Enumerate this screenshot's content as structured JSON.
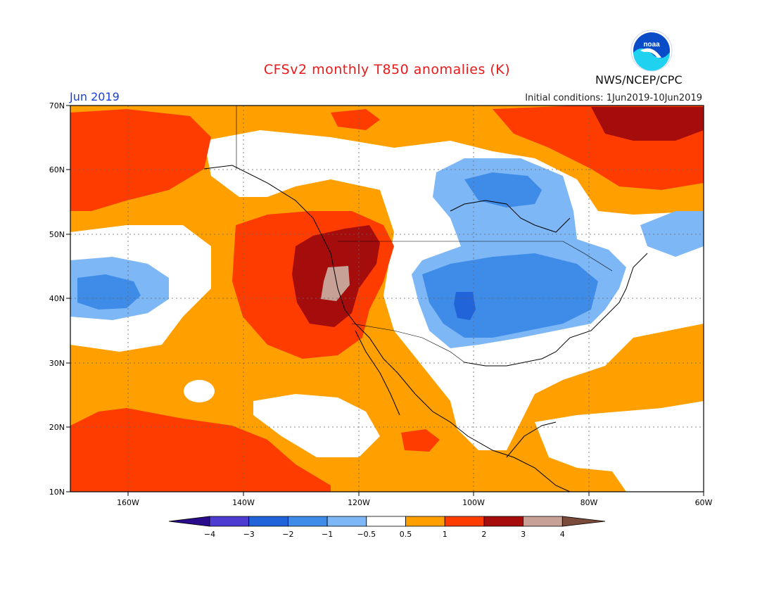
{
  "title": "CFSv2 monthly T850 anomalies (K)",
  "month_label": "Jun 2019",
  "initial_conditions": "Initial conditions: 1Jun2019-10Jun2019",
  "agency": "NWS/NCEP/CPC",
  "logo_text": "noaa",
  "map": {
    "lon_range": [
      -172,
      -60
    ],
    "lat_range": [
      10,
      70
    ],
    "lon_ticks": [
      "160W",
      "140W",
      "120W",
      "100W",
      "80W",
      "60W"
    ],
    "lat_ticks": [
      "70N",
      "60N",
      "50N",
      "40N",
      "30N",
      "20N",
      "10N"
    ],
    "grid": "dotted"
  },
  "colorbar": {
    "labels": [
      "-4",
      "-3",
      "-2",
      "-1",
      "-0.5",
      "0.5",
      "1",
      "2",
      "3",
      "4"
    ],
    "colors": [
      "#2a0b8c",
      "#4e3cd0",
      "#2163d8",
      "#3f8ce8",
      "#7db7f5",
      "#ffffff",
      "#ffa000",
      "#ff3c00",
      "#a50d0d",
      "#c8a196",
      "#7a4a3a"
    ]
  }
}
